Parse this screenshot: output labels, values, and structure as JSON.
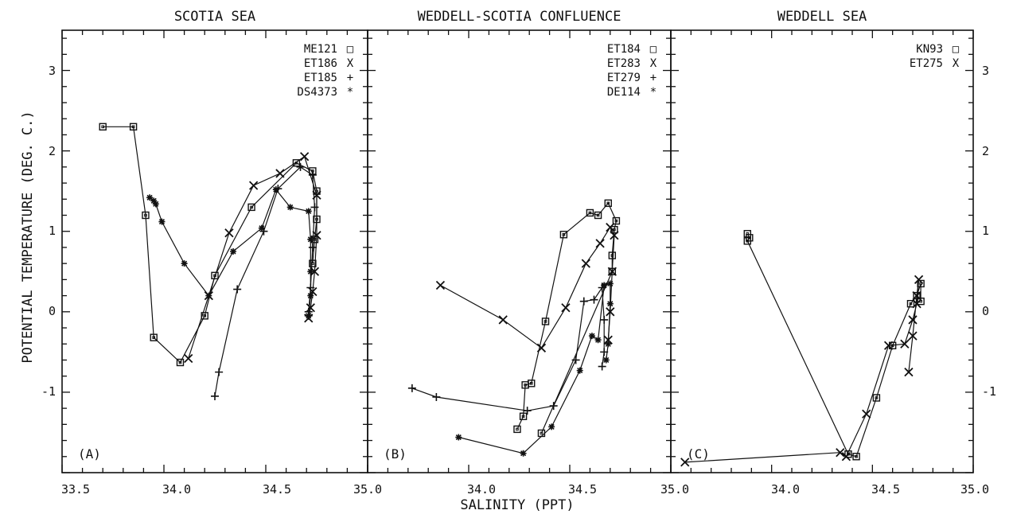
{
  "figure": {
    "xlabel": "SALINITY (PPT)",
    "ylabel": "POTENTIAL TEMPERATURE (DEG. C.)",
    "left_ytick_labels": [
      "3",
      "2",
      "1",
      "0",
      "-1"
    ],
    "right_ytick_labels": [
      "3",
      "2",
      "1",
      "0",
      "-1"
    ],
    "bottom_xtick_labels": [
      "33.5",
      "34.0",
      "34.5",
      "35.0",
      "34.0",
      "34.5",
      "35.0",
      "34.0",
      "34.5",
      "35.0"
    ]
  },
  "chart_data": [
    {
      "type": "line",
      "title": "SCOTIA SEA",
      "panel_label": "(A)",
      "xlim": [
        33.5,
        35.0
      ],
      "ylim": [
        -2.0,
        3.5
      ],
      "series": [
        {
          "name": "ME121",
          "marker": "□",
          "points": [
            [
              33.7,
              2.3
            ],
            [
              33.85,
              2.3
            ],
            [
              33.91,
              1.2
            ],
            [
              33.95,
              -0.32
            ],
            [
              34.08,
              -0.63
            ],
            [
              34.2,
              -0.05
            ],
            [
              34.25,
              0.45
            ],
            [
              34.43,
              1.3
            ],
            [
              34.65,
              1.85
            ],
            [
              34.73,
              1.75
            ],
            [
              34.75,
              1.5
            ],
            [
              34.75,
              1.15
            ],
            [
              34.74,
              0.9
            ],
            [
              34.73,
              0.6
            ]
          ]
        },
        {
          "name": "ET186",
          "marker": "X",
          "points": [
            [
              34.12,
              -0.58
            ],
            [
              34.22,
              0.2
            ],
            [
              34.32,
              0.98
            ],
            [
              34.44,
              1.57
            ],
            [
              34.57,
              1.72
            ],
            [
              34.69,
              1.93
            ],
            [
              34.75,
              1.45
            ],
            [
              34.75,
              0.95
            ],
            [
              34.74,
              0.5
            ],
            [
              34.73,
              0.25
            ],
            [
              34.72,
              0.05
            ],
            [
              34.71,
              -0.08
            ]
          ]
        },
        {
          "name": "ET185",
          "marker": "+",
          "points": [
            [
              34.25,
              -1.05
            ],
            [
              34.27,
              -0.75
            ],
            [
              34.36,
              0.28
            ],
            [
              34.49,
              1.0
            ],
            [
              34.56,
              1.53
            ],
            [
              34.67,
              1.8
            ],
            [
              34.73,
              1.7
            ],
            [
              34.74,
              1.3
            ],
            [
              34.73,
              0.8
            ],
            [
              34.72,
              0.3
            ],
            [
              34.71,
              0.0
            ],
            [
              34.71,
              -0.05
            ]
          ]
        },
        {
          "name": "DS4373",
          "marker": "*",
          "points": [
            [
              33.93,
              1.42
            ],
            [
              33.95,
              1.38
            ],
            [
              33.96,
              1.34
            ],
            [
              33.99,
              1.12
            ],
            [
              34.1,
              0.6
            ],
            [
              34.22,
              0.2
            ],
            [
              34.34,
              0.75
            ],
            [
              34.48,
              1.04
            ],
            [
              34.55,
              1.52
            ],
            [
              34.62,
              1.3
            ],
            [
              34.71,
              1.25
            ],
            [
              34.72,
              0.9
            ],
            [
              34.72,
              0.5
            ],
            [
              34.72,
              0.2
            ],
            [
              34.71,
              -0.05
            ]
          ]
        }
      ]
    },
    {
      "type": "line",
      "title": "WEDDELL-SCOTIA CONFLUENCE",
      "panel_label": "(B)",
      "xlim": [
        33.5,
        35.0
      ],
      "ylim": [
        -2.0,
        3.5
      ],
      "series": [
        {
          "name": "ET184",
          "marker": "□",
          "points": [
            [
              34.24,
              -1.46
            ],
            [
              34.27,
              -1.3
            ],
            [
              34.28,
              -0.91
            ],
            [
              34.31,
              -0.89
            ],
            [
              34.38,
              -0.12
            ],
            [
              34.47,
              0.96
            ],
            [
              34.6,
              1.23
            ],
            [
              34.64,
              1.2
            ],
            [
              34.69,
              1.35
            ],
            [
              34.73,
              1.13
            ],
            [
              34.72,
              1.02
            ],
            [
              34.71,
              0.7
            ],
            [
              34.71,
              0.5
            ],
            [
              34.36,
              -1.51
            ]
          ]
        },
        {
          "name": "ET283",
          "marker": "X",
          "points": [
            [
              33.86,
              0.33
            ],
            [
              34.17,
              -0.1
            ],
            [
              34.36,
              -0.45
            ],
            [
              34.48,
              0.05
            ],
            [
              34.58,
              0.6
            ],
            [
              34.65,
              0.85
            ],
            [
              34.7,
              1.05
            ],
            [
              34.72,
              0.95
            ],
            [
              34.71,
              0.5
            ],
            [
              34.7,
              0.0
            ],
            [
              34.69,
              -0.35
            ]
          ]
        },
        {
          "name": "ET279",
          "marker": "+",
          "points": [
            [
              33.72,
              -0.95
            ],
            [
              33.84,
              -1.06
            ],
            [
              34.29,
              -1.23
            ],
            [
              34.42,
              -1.17
            ],
            [
              34.53,
              -0.6
            ],
            [
              34.57,
              0.13
            ],
            [
              34.62,
              0.15
            ],
            [
              34.66,
              0.3
            ],
            [
              34.67,
              -0.1
            ],
            [
              34.67,
              -0.5
            ],
            [
              34.66,
              -0.68
            ]
          ]
        },
        {
          "name": "DE114",
          "marker": "*",
          "points": [
            [
              33.95,
              -1.56
            ],
            [
              34.27,
              -1.76
            ],
            [
              34.41,
              -1.43
            ],
            [
              34.55,
              -0.73
            ],
            [
              34.61,
              -0.3
            ],
            [
              34.64,
              -0.35
            ],
            [
              34.67,
              0.33
            ],
            [
              34.7,
              0.35
            ],
            [
              34.7,
              0.1
            ],
            [
              34.69,
              -0.4
            ],
            [
              34.68,
              -0.6
            ]
          ]
        }
      ]
    },
    {
      "type": "line",
      "title": "WEDDELL SEA",
      "panel_label": "(C)",
      "xlim": [
        33.5,
        35.0
      ],
      "ylim": [
        -2.0,
        3.5
      ],
      "series": [
        {
          "name": "KN93",
          "marker": "□",
          "points": [
            [
              33.88,
              0.97
            ],
            [
              33.89,
              0.92
            ],
            [
              33.88,
              0.88
            ],
            [
              34.38,
              -1.77
            ],
            [
              34.42,
              -1.8
            ],
            [
              34.52,
              -1.07
            ],
            [
              34.6,
              -0.42
            ],
            [
              34.69,
              0.1
            ],
            [
              34.72,
              0.2
            ],
            [
              34.74,
              0.35
            ],
            [
              34.74,
              0.13
            ]
          ]
        },
        {
          "name": "ET275",
          "marker": "X",
          "points": [
            [
              33.57,
              -1.87
            ],
            [
              34.34,
              -1.75
            ],
            [
              34.37,
              -1.8
            ],
            [
              34.47,
              -1.27
            ],
            [
              34.58,
              -0.42
            ],
            [
              34.66,
              -0.4
            ],
            [
              34.7,
              -0.1
            ],
            [
              34.72,
              0.1
            ],
            [
              34.73,
              0.4
            ],
            [
              34.72,
              0.2
            ],
            [
              34.7,
              -0.3
            ],
            [
              34.68,
              -0.75
            ]
          ]
        }
      ]
    }
  ]
}
